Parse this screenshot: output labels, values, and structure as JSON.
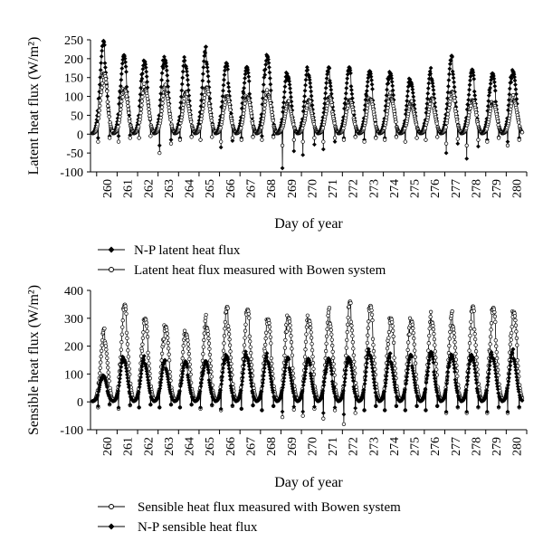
{
  "chart_data": [
    {
      "type": "line",
      "ylabel": "Latent heat flux (W/m²)",
      "xlabel": "Day of year",
      "ylim": [
        -100,
        250
      ],
      "yticks": [
        -100,
        -50,
        0,
        50,
        100,
        150,
        200,
        250
      ],
      "xlim": [
        259.2,
        280.5
      ],
      "xticks": [
        "260",
        "261",
        "262",
        "263",
        "264",
        "265",
        "266",
        "267",
        "268",
        "269",
        "270",
        "271",
        "272",
        "273",
        "274",
        "275",
        "276",
        "277",
        "278",
        "279",
        "280"
      ],
      "grid": false,
      "legend_position": "bottom",
      "series": [
        {
          "name": "N-P latent heat flux",
          "marker": "filled-diamond",
          "color": "#000000",
          "daily_peaks": [
            235,
            205,
            195,
            205,
            195,
            215,
            180,
            175,
            210,
            160,
            170,
            165,
            170,
            165,
            165,
            145,
            160,
            195,
            165,
            160,
            170
          ],
          "daily_minima": [
            -10,
            -5,
            -10,
            -30,
            -10,
            -15,
            -35,
            -10,
            -5,
            -90,
            -55,
            -40,
            -10,
            -15,
            -10,
            -20,
            -15,
            -50,
            -65,
            -15,
            -20
          ]
        },
        {
          "name": "Latent heat flux measured with Bowen system",
          "marker": "open-circle",
          "color": "#000000",
          "daily_peaks": [
            160,
            120,
            125,
            120,
            105,
            120,
            100,
            100,
            110,
            80,
            85,
            95,
            90,
            95,
            100,
            80,
            90,
            110,
            90,
            85,
            95
          ],
          "daily_minima": [
            -20,
            -20,
            -10,
            -50,
            -15,
            -15,
            -20,
            -15,
            -15,
            -30,
            -20,
            -20,
            -15,
            -20,
            -15,
            -20,
            -15,
            -25,
            -30,
            -20,
            -30
          ]
        }
      ]
    },
    {
      "type": "line",
      "ylabel": "Sensible heat flux (W/m²)",
      "xlabel": "Day of year",
      "ylim": [
        -100,
        400
      ],
      "yticks": [
        -100,
        0,
        100,
        200,
        300,
        400
      ],
      "xlim": [
        259.2,
        280.5
      ],
      "xticks": [
        "260",
        "261",
        "262",
        "263",
        "264",
        "265",
        "266",
        "267",
        "268",
        "269",
        "270",
        "271",
        "272",
        "273",
        "274",
        "275",
        "276",
        "277",
        "278",
        "279",
        "280"
      ],
      "grid": false,
      "legend_position": "bottom",
      "series": [
        {
          "name": "Sensible heat flux measured with Bowen system",
          "marker": "open-circle",
          "color": "#000000",
          "daily_peaks": [
            245,
            335,
            295,
            275,
            255,
            290,
            320,
            320,
            295,
            310,
            310,
            310,
            340,
            335,
            300,
            300,
            305,
            300,
            325,
            330,
            325
          ],
          "daily_minima": [
            -20,
            -25,
            -20,
            -20,
            -20,
            -25,
            -30,
            -25,
            -30,
            -55,
            -50,
            -60,
            -80,
            -30,
            -30,
            -30,
            -30,
            -40,
            -40,
            -40,
            -40
          ]
        },
        {
          "name": "N-P sensible heat flux",
          "marker": "filled-diamond",
          "color": "#000000",
          "daily_peaks": [
            95,
            160,
            150,
            140,
            140,
            145,
            170,
            170,
            160,
            150,
            150,
            155,
            160,
            180,
            160,
            160,
            175,
            170,
            170,
            170,
            175
          ],
          "daily_minima": [
            -15,
            -20,
            -20,
            -20,
            -20,
            -20,
            -25,
            -25,
            -30,
            -35,
            -35,
            -40,
            -45,
            -30,
            -30,
            -30,
            -30,
            -35,
            -35,
            -35,
            -35
          ]
        }
      ]
    }
  ]
}
